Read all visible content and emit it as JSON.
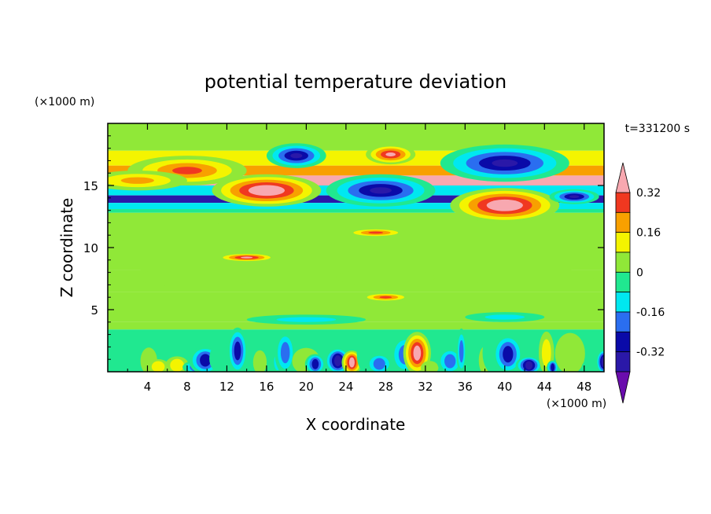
{
  "chart_data": {
    "type": "heatmap",
    "title": "potential temperature deviation",
    "xlabel": "X coordinate",
    "ylabel": "Z coordinate",
    "x_unit": "(×1000 m)",
    "y_unit": "(×1000 m)",
    "time_label": "t=331200 s",
    "xlim": [
      0,
      50
    ],
    "ylim": [
      0,
      20
    ],
    "x_ticks": [
      4,
      8,
      12,
      16,
      20,
      24,
      28,
      32,
      36,
      40,
      44,
      48
    ],
    "y_ticks": [
      5,
      10,
      15
    ],
    "colorbar": {
      "levels": [
        -0.4,
        -0.32,
        -0.24,
        -0.16,
        -0.08,
        0,
        0.08,
        0.16,
        0.24,
        0.32,
        0.4
      ],
      "colors": [
        "#6a0dad",
        "#2a18a8",
        "#0a0aa8",
        "#2a6ef0",
        "#00e8f0",
        "#20e890",
        "#90e838",
        "#f4f400",
        "#f8a000",
        "#f03820",
        "#f8a8b0"
      ],
      "tick_labels": [
        "0.32",
        "0.16",
        "0",
        "-0.16",
        "-0.32"
      ],
      "tick_values": [
        0.32,
        0.16,
        0,
        -0.16,
        -0.32
      ],
      "extend": "both"
    },
    "features": [
      {
        "x": 16,
        "z": 14.6,
        "rx": 5.5,
        "rz": 1.3,
        "value": 0.45
      },
      {
        "x": 8,
        "z": 16.2,
        "rx": 6,
        "rz": 1.2,
        "value": 0.3
      },
      {
        "x": 3,
        "z": 15.4,
        "rx": 5,
        "rz": 0.8,
        "value": 0.2
      },
      {
        "x": 19,
        "z": 17.4,
        "rx": 3,
        "rz": 1.0,
        "value": -0.36
      },
      {
        "x": 27.5,
        "z": 14.6,
        "rx": 5.5,
        "rz": 1.3,
        "value": -0.42
      },
      {
        "x": 28.5,
        "z": 17.5,
        "rx": 2.5,
        "rz": 0.8,
        "value": 0.4
      },
      {
        "x": 40,
        "z": 16.8,
        "rx": 6.5,
        "rz": 1.5,
        "value": -0.4
      },
      {
        "x": 40,
        "z": 13.4,
        "rx": 5.5,
        "rz": 1.4,
        "value": 0.45
      },
      {
        "x": 47,
        "z": 14.1,
        "rx": 2.5,
        "rz": 0.6,
        "value": -0.36
      },
      {
        "x": 25,
        "z": 9.6,
        "rx": 25,
        "rz": 2.8,
        "value": 0.05
      },
      {
        "x": 9,
        "z": 7.6,
        "rx": 6,
        "rz": 0.8,
        "value": 0.1
      },
      {
        "x": 28,
        "z": 7.6,
        "rx": 5,
        "rz": 0.7,
        "value": 0.1
      },
      {
        "x": 43,
        "z": 7.4,
        "rx": 6,
        "rz": 0.7,
        "value": 0.1
      },
      {
        "x": 14,
        "z": 9.2,
        "rx": 3,
        "rz": 0.35,
        "value": 0.4
      },
      {
        "x": 27,
        "z": 11.2,
        "rx": 3,
        "rz": 0.35,
        "value": 0.3
      },
      {
        "x": 28,
        "z": 6.0,
        "rx": 2.5,
        "rz": 0.35,
        "value": 0.35
      },
      {
        "x": 20,
        "z": 4.2,
        "rx": 6,
        "rz": 0.4,
        "value": -0.12
      },
      {
        "x": 40,
        "z": 4.4,
        "rx": 4,
        "rz": 0.4,
        "value": -0.12
      }
    ],
    "boundary_layer_top": 3.4
  }
}
